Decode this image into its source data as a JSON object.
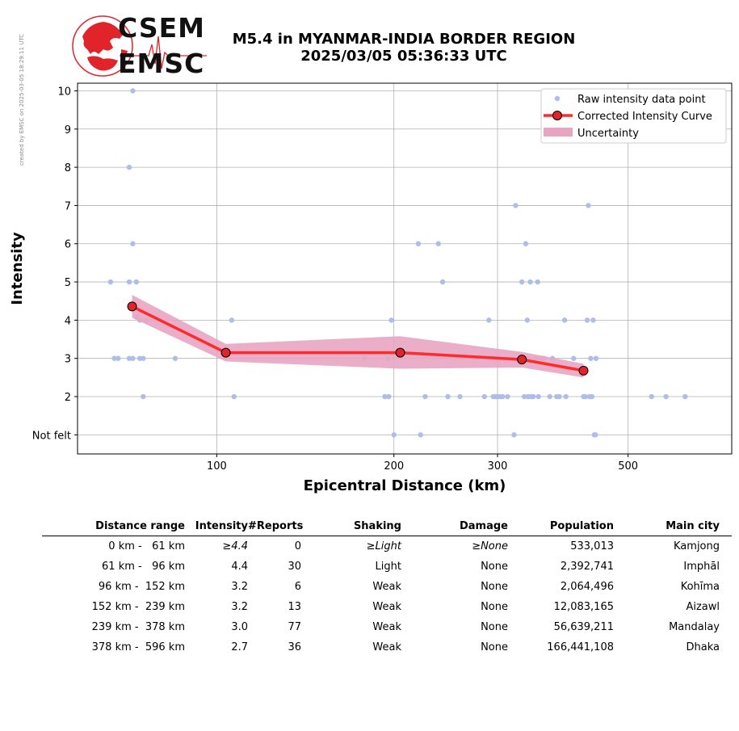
{
  "side_note": "created by EMSC on 2025-03-05 18:29:11 UTC",
  "logo": {
    "line1": "CSEM",
    "line2": "EMSC",
    "color": "#e0242a"
  },
  "title_line1": "M5.4 in MYANMAR-INDIA BORDER REGION",
  "title_line2": "2025/03/05 05:36:33 UTC",
  "chart_data": {
    "type": "scatter",
    "xlabel": "Epicentral Distance (km)",
    "ylabel": "Intensity",
    "x_scale": "log",
    "xlim": [
      58,
      750
    ],
    "ylim": [
      0.5,
      10.2
    ],
    "x_ticks": [
      100,
      200,
      300,
      500
    ],
    "y_ticks": [
      1,
      2,
      3,
      4,
      5,
      6,
      7,
      8,
      9,
      10
    ],
    "y_tick_labels": [
      "Not felt",
      "2",
      "3",
      "4",
      "5",
      "6",
      "7",
      "8",
      "9",
      "10"
    ],
    "grid": true,
    "legend_position": "top-right",
    "legend": [
      "Raw intensity data point",
      "Corrected Intensity Curve",
      "Uncertainty"
    ],
    "colors": {
      "raw": "#aebde9",
      "curve": "#ff2a2a",
      "marker": "#e0242a",
      "uncertainty": "#e8a5c2"
    },
    "raw_points": [
      [
        66,
        5
      ],
      [
        67,
        3
      ],
      [
        68,
        3
      ],
      [
        71,
        8
      ],
      [
        71,
        5
      ],
      [
        71,
        3
      ],
      [
        72,
        10
      ],
      [
        72,
        6
      ],
      [
        72,
        3
      ],
      [
        73,
        5
      ],
      [
        73,
        4.1
      ],
      [
        74,
        4
      ],
      [
        74,
        3
      ],
      [
        75,
        2
      ],
      [
        75,
        3
      ],
      [
        76,
        4
      ],
      [
        85,
        3
      ],
      [
        106,
        4
      ],
      [
        107,
        2
      ],
      [
        178,
        3
      ],
      [
        193,
        2
      ],
      [
        195,
        3
      ],
      [
        196,
        2
      ],
      [
        198,
        4
      ],
      [
        200,
        1
      ],
      [
        220,
        6
      ],
      [
        222,
        1
      ],
      [
        226,
        2
      ],
      [
        238,
        6
      ],
      [
        242,
        5
      ],
      [
        247,
        2
      ],
      [
        259,
        2
      ],
      [
        285,
        2
      ],
      [
        290,
        4
      ],
      [
        295,
        2
      ],
      [
        298,
        2
      ],
      [
        300,
        2
      ],
      [
        303,
        2
      ],
      [
        306,
        2
      ],
      [
        312,
        2
      ],
      [
        320,
        1
      ],
      [
        322,
        7
      ],
      [
        330,
        5
      ],
      [
        333,
        2
      ],
      [
        335,
        6
      ],
      [
        337,
        4
      ],
      [
        338,
        3
      ],
      [
        338,
        2
      ],
      [
        341,
        5
      ],
      [
        342,
        2
      ],
      [
        345,
        2
      ],
      [
        348,
        3
      ],
      [
        351,
        5
      ],
      [
        352,
        2
      ],
      [
        356,
        3
      ],
      [
        360,
        3
      ],
      [
        368,
        2
      ],
      [
        372,
        3
      ],
      [
        378,
        2
      ],
      [
        382,
        2
      ],
      [
        390,
        4
      ],
      [
        392,
        2
      ],
      [
        404,
        3
      ],
      [
        420,
        2
      ],
      [
        423,
        2
      ],
      [
        426,
        4
      ],
      [
        428,
        7
      ],
      [
        430,
        2
      ],
      [
        432,
        3
      ],
      [
        434,
        2
      ],
      [
        436,
        4
      ],
      [
        438,
        1
      ],
      [
        440,
        1
      ],
      [
        441,
        3
      ],
      [
        548,
        2
      ],
      [
        580,
        2
      ],
      [
        625,
        2
      ]
    ],
    "curve": {
      "x": [
        71.8,
        103.6,
        205,
        330,
        420
      ],
      "y": [
        4.36,
        3.15,
        3.15,
        2.97,
        2.68
      ],
      "upper": [
        4.66,
        3.38,
        3.58,
        3.17,
        2.86
      ],
      "lower": [
        4.06,
        2.92,
        2.73,
        2.76,
        2.5
      ]
    }
  },
  "table": {
    "headers": [
      "Distance range",
      "Intensity",
      "#Reports",
      "Shaking",
      "Damage",
      "Population",
      "Main city"
    ],
    "rows": [
      [
        "  0 km -   61 km",
        "≥4.4",
        "0",
        "≥Light",
        "≥None",
        "533,013",
        "Kamjong"
      ],
      [
        " 61 km -   96 km",
        "4.4",
        "30",
        "Light",
        "None",
        "2,392,741",
        "Imphāl"
      ],
      [
        " 96 km -  152 km",
        "3.2",
        "6",
        "Weak",
        "None",
        "2,064,496",
        "Kohīma"
      ],
      [
        "152 km -  239 km",
        "3.2",
        "13",
        "Weak",
        "None",
        "12,083,165",
        "Aizawl"
      ],
      [
        "239 km -  378 km",
        "3.0",
        "77",
        "Weak",
        "None",
        "56,639,211",
        "Mandalay"
      ],
      [
        "378 km -  596 km",
        "2.7",
        "36",
        "Weak",
        "None",
        "166,441,108",
        "Dhaka"
      ]
    ]
  }
}
